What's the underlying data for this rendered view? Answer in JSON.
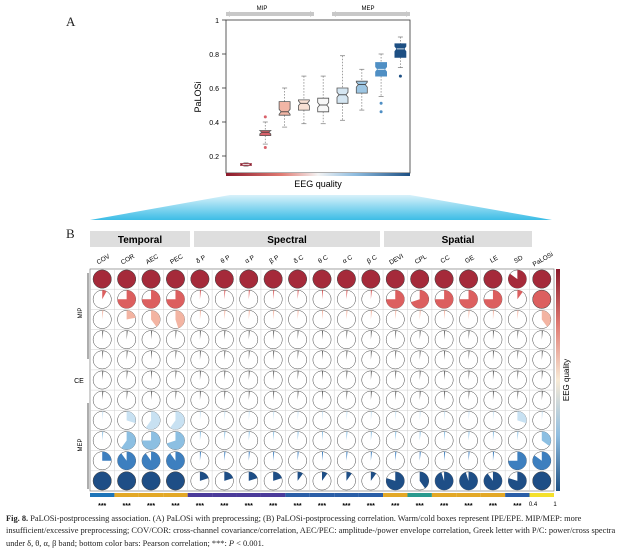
{
  "panel_a_label": "A",
  "panel_b_label": "B",
  "chart_data": [
    {
      "type": "box",
      "panel": "A",
      "ylabel": "PaLOSi",
      "xlabel": "EEG quality",
      "ylim": [
        0.1,
        1.0
      ],
      "yticks": [
        "0.2",
        "0.4",
        "0.6",
        "0.8",
        "1"
      ],
      "group_labels": [
        "MIP",
        "MEP"
      ],
      "boxes": [
        {
          "median": 0.15,
          "q1": 0.145,
          "q3": 0.155,
          "whislo": 0.14,
          "whishi": 0.16,
          "color": "#8b1a2b",
          "outliers": []
        },
        {
          "median": 0.34,
          "q1": 0.32,
          "q3": 0.35,
          "whislo": 0.27,
          "whishi": 0.4,
          "color": "#d9616a",
          "outliers": [
            0.25,
            0.43
          ]
        },
        {
          "median": 0.46,
          "q1": 0.44,
          "q3": 0.52,
          "whislo": 0.37,
          "whishi": 0.6,
          "color": "#f2b6a6",
          "outliers": []
        },
        {
          "median": 0.51,
          "q1": 0.47,
          "q3": 0.53,
          "whislo": 0.39,
          "whishi": 0.67,
          "color": "#f7e0d4",
          "outliers": []
        },
        {
          "median": 0.5,
          "q1": 0.46,
          "q3": 0.54,
          "whislo": 0.39,
          "whishi": 0.67,
          "color": "#f7f7f7",
          "outliers": []
        },
        {
          "median": 0.56,
          "q1": 0.51,
          "q3": 0.6,
          "whislo": 0.41,
          "whishi": 0.79,
          "color": "#d5e6f2",
          "outliers": []
        },
        {
          "median": 0.62,
          "q1": 0.57,
          "q3": 0.64,
          "whislo": 0.47,
          "whishi": 0.71,
          "color": "#9dc6e3",
          "outliers": []
        },
        {
          "median": 0.71,
          "q1": 0.67,
          "q3": 0.75,
          "whislo": 0.55,
          "whishi": 0.8,
          "color": "#4f8fc4",
          "outliers": [
            0.46,
            0.51
          ]
        },
        {
          "median": 0.83,
          "q1": 0.78,
          "q3": 0.86,
          "whislo": 0.72,
          "whishi": 0.9,
          "color": "#1d4f83",
          "outliers": [
            0.67
          ]
        }
      ]
    },
    {
      "type": "correlation-matrix",
      "panel": "B",
      "group_headers": [
        "Temporal",
        "Spectral",
        "Spatial"
      ],
      "columns": [
        "COV",
        "COR",
        "AEC",
        "PEC",
        "δ P",
        "θ P",
        "α P",
        "β P",
        "δ C",
        "θ C",
        "α C",
        "β C",
        "DEVI",
        "CPL",
        "CC",
        "GE",
        "LE",
        "SD",
        "PaLOSi"
      ],
      "row_group_labels": [
        "MIP",
        "CE",
        "MEP"
      ],
      "colorbar_label": "EEG quality",
      "significance": [
        "***",
        "***",
        "***",
        "***",
        "***",
        "***",
        "***",
        "***",
        "***",
        "***",
        "***",
        "***",
        "***",
        "***",
        "***",
        "***",
        "***",
        "***"
      ],
      "bottom_scale_labels": [
        "0.4",
        "1"
      ],
      "row_colors": [
        "#a52a3a",
        "#dc5f5f",
        "#f3b4a2",
        "#ffffff",
        "#ffffff",
        "#ffffff",
        "#ffffff",
        "#c8e1f2",
        "#8cbfe2",
        "#3d7fbf",
        "#1e4e86"
      ],
      "values": [
        [
          1,
          1,
          1,
          1,
          1,
          1,
          1,
          1,
          1,
          1,
          1,
          1,
          1,
          1,
          1,
          1,
          1,
          0.85,
          1
        ],
        [
          0.08,
          0.75,
          0.75,
          0.75,
          0.02,
          0.02,
          0.02,
          0.02,
          0.02,
          0.02,
          0.02,
          0.02,
          0.75,
          0.7,
          0.75,
          0.75,
          0.75,
          0.1,
          1
        ],
        [
          0.02,
          0.22,
          0.4,
          0.45,
          0.02,
          0.02,
          0.02,
          0.02,
          0.02,
          0.02,
          0.02,
          0.02,
          0.02,
          0.02,
          0.02,
          0.02,
          0.02,
          0.02,
          0.4
        ],
        [
          0.02,
          0.02,
          0.02,
          0.02,
          0.02,
          0.02,
          0.02,
          0.02,
          0.02,
          0.02,
          0.02,
          0.02,
          0.02,
          0.02,
          0.02,
          0.02,
          0.02,
          0.02,
          0.02
        ],
        [
          0.02,
          0.02,
          0.02,
          0.02,
          0.02,
          0.02,
          0.02,
          0.02,
          0.02,
          0.02,
          0.02,
          0.02,
          0.02,
          0.02,
          0.02,
          0.02,
          0.02,
          0.02,
          0.02
        ],
        [
          0.02,
          0.02,
          0.02,
          0.02,
          0.02,
          0.02,
          0.02,
          0.02,
          0.02,
          0.02,
          0.02,
          0.02,
          0.02,
          0.02,
          0.02,
          0.02,
          0.02,
          0.02,
          0.02
        ],
        [
          0.02,
          0.02,
          0.02,
          0.02,
          0.02,
          0.02,
          0.02,
          0.02,
          0.02,
          0.02,
          0.02,
          0.02,
          0.02,
          0.02,
          0.02,
          0.02,
          0.02,
          0.02,
          0.02
        ],
        [
          0.02,
          0.3,
          0.6,
          0.6,
          0.02,
          0.02,
          0.02,
          0.02,
          0.02,
          0.02,
          0.02,
          0.02,
          0.02,
          0.02,
          0.02,
          0.02,
          0.02,
          0.3,
          0.02
        ],
        [
          0.02,
          0.6,
          0.75,
          0.7,
          0.02,
          0.02,
          0.02,
          0.02,
          0.02,
          0.02,
          0.02,
          0.02,
          0.02,
          0.02,
          0.02,
          0.02,
          0.02,
          0.02,
          0.35
        ],
        [
          0.25,
          0.9,
          0.9,
          0.9,
          0.02,
          0.02,
          0.02,
          0.02,
          0.02,
          0.02,
          0.02,
          0.02,
          0.02,
          0.02,
          0.02,
          0.02,
          0.02,
          0.75,
          0.85
        ],
        [
          1,
          1,
          1,
          1,
          0.2,
          0.2,
          0.2,
          0.2,
          0.1,
          0.1,
          0.1,
          0.1,
          0.8,
          0.4,
          0.95,
          0.95,
          0.9,
          0.8,
          1
        ]
      ]
    }
  ],
  "caption": {
    "fig_label": "Fig. 8.",
    "part1": "PaLOSi-postprocessing association. (A) PaLOSi with preprocessing; (B) PaLOSi-postprocessing correlation. Warm/cold boxes represent IPE/EPE. MIP/MEP: more insufficient/excessive preprocessing; COV/COR: cross-channel covariance/correlation, AEC/PEC: amplitude-/power envelope correlation, Greek letter with P/C: power/cross spectra under δ, θ, α, β band; bottom color bars: Pearson correlation; ***:",
    "p_symbol": "P",
    "part2": "< 0.001."
  }
}
